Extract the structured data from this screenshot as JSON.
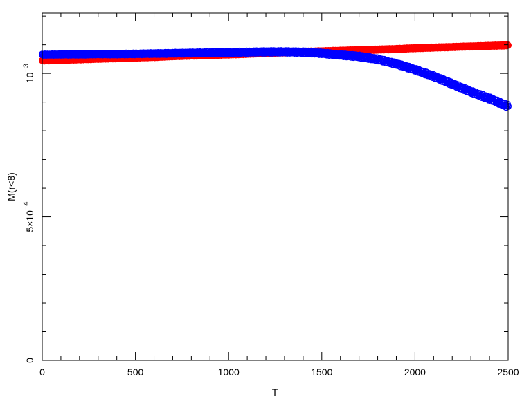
{
  "chart_data": {
    "type": "scatter",
    "title": "",
    "xlabel": "T",
    "ylabel": "M(r<8)",
    "xlim": [
      0,
      2500
    ],
    "ylim": [
      0,
      0.00121
    ],
    "x_ticks": [
      {
        "value": 0,
        "label": "0"
      },
      {
        "value": 500,
        "label": "500"
      },
      {
        "value": 1000,
        "label": "1000"
      },
      {
        "value": 1500,
        "label": "1500"
      },
      {
        "value": 2000,
        "label": "2000"
      },
      {
        "value": 2500,
        "label": "2500"
      }
    ],
    "y_ticks": [
      {
        "value": 0,
        "label": "0",
        "exp": ""
      },
      {
        "value": 0.0005,
        "label": "5×10",
        "exp": "−4"
      },
      {
        "value": 0.001,
        "label": "10",
        "exp": "−3"
      }
    ],
    "grid": false,
    "legend": "none",
    "series": [
      {
        "color": "#ff0000",
        "marker": "circle",
        "x": [
          0,
          100,
          200,
          300,
          400,
          500,
          600,
          700,
          800,
          900,
          1000,
          1100,
          1200,
          1300,
          1400,
          1500,
          1600,
          1700,
          1800,
          1900,
          2000,
          2100,
          2200,
          2300,
          2400,
          2500
        ],
        "y": [
          0.001045,
          0.001047,
          0.001049,
          0.001051,
          0.001053,
          0.001055,
          0.001057,
          0.00106,
          0.001062,
          0.001064,
          0.001066,
          0.001068,
          0.001071,
          0.001073,
          0.001075,
          0.001077,
          0.001079,
          0.001081,
          0.001083,
          0.001085,
          0.001088,
          0.00109,
          0.001092,
          0.001094,
          0.001096,
          0.001098
        ]
      },
      {
        "color": "#0000ff",
        "marker": "circle",
        "x": [
          0,
          100,
          200,
          300,
          400,
          500,
          600,
          700,
          800,
          900,
          1000,
          1100,
          1200,
          1300,
          1400,
          1500,
          1600,
          1700,
          1800,
          1900,
          2000,
          2100,
          2200,
          2300,
          2400,
          2500
        ],
        "y": [
          0.001065,
          0.001066,
          0.001066,
          0.001067,
          0.001067,
          0.001068,
          0.001069,
          0.00107,
          0.001071,
          0.001072,
          0.001073,
          0.001074,
          0.001075,
          0.001075,
          0.001074,
          0.00107,
          0.001064,
          0.001059,
          0.001049,
          0.001033,
          0.001013,
          0.00099,
          0.000963,
          0.000936,
          0.000912,
          0.000885
        ]
      }
    ]
  }
}
